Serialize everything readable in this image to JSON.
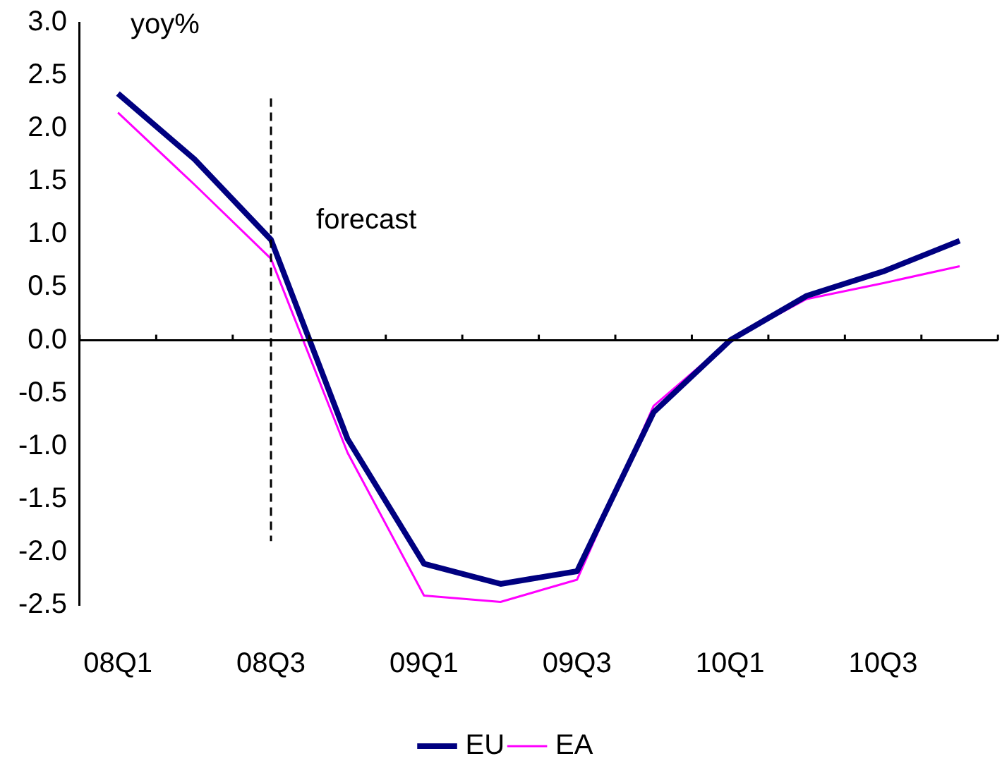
{
  "chart_data": {
    "type": "line",
    "ylabel": "yoy%",
    "categories": [
      "08Q1",
      null,
      "08Q3",
      null,
      "09Q1",
      null,
      "09Q3",
      null,
      "10Q1",
      null,
      "10Q3",
      null
    ],
    "series": [
      {
        "name": "EU",
        "color": "#000080",
        "values": [
          2.33,
          1.71,
          0.95,
          -0.93,
          -2.11,
          -2.3,
          -2.18,
          -0.68,
          0.0,
          0.42,
          0.65,
          0.94
        ]
      },
      {
        "name": "EA",
        "color": "#ff00ff",
        "values": [
          2.15,
          1.47,
          0.77,
          -1.06,
          -2.41,
          -2.47,
          -2.26,
          -0.62,
          0.0,
          0.39,
          0.54,
          0.7
        ]
      }
    ],
    "ylim": [
      -2.5,
      3.0
    ],
    "yticks": [
      -2.5,
      {
        "value": -2,
        "label": "-2.0"
      },
      -1.5,
      {
        "value": -1,
        "label": "-1.0"
      },
      -0.5,
      {
        "value": 0,
        "label": "0.0"
      },
      0.5,
      {
        "value": 1,
        "label": "1.0"
      },
      1.5,
      {
        "value": 2,
        "label": "2.0"
      },
      2.5,
      {
        "value": 3,
        "label": "3.0"
      }
    ],
    "ref_lines": [
      {
        "axis": "x",
        "value": "08Q3",
        "label": "forecast",
        "color": "#000000",
        "line_style": "dashed"
      }
    ],
    "grid": false,
    "legend": "bottom",
    "marker": "none",
    "line_style": "solid"
  }
}
